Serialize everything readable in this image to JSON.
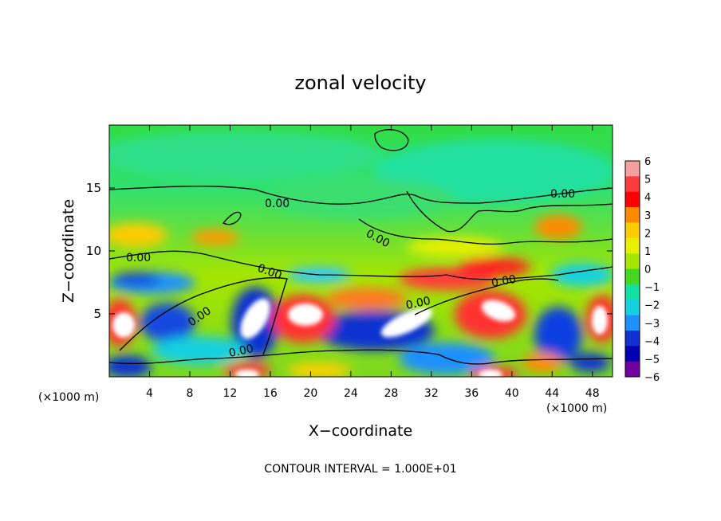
{
  "chart_data": {
    "type": "heatmap",
    "title": "zonal velocity",
    "xlabel": "X−coordinate",
    "ylabel": "Z−coordinate",
    "x_unit_left": "(×1000 m)",
    "x_unit_right": "(×1000 m)",
    "footer": "CONTOUR INTERVAL = 1.000E+01",
    "xlim": [
      0,
      50
    ],
    "ylim": [
      0,
      20
    ],
    "x_ticks": [
      "4",
      "8",
      "12",
      "16",
      "20",
      "24",
      "28",
      "32",
      "36",
      "40",
      "44",
      "48"
    ],
    "y_ticks": [
      "5",
      "10",
      "15"
    ],
    "colorbar": {
      "range": [
        -6,
        6
      ],
      "tick_labels": [
        "6",
        "5",
        "4",
        "3",
        "2",
        "1",
        "0",
        "−1",
        "−2",
        "−3",
        "−4",
        "−5",
        "−6"
      ],
      "colors": [
        "#f4a0a0",
        "#ff3a3a",
        "#ff0000",
        "#ff8a00",
        "#ffcc00",
        "#e8f000",
        "#a6e600",
        "#44d820",
        "#10e0a0",
        "#14d0e0",
        "#1e90ff",
        "#1030d0",
        "#0000b0",
        "#7000a0"
      ]
    },
    "contour_labels": [
      "0.00",
      "0.00",
      "0.00",
      "0.00",
      "0.00",
      "0.00",
      "0.00",
      "0.00",
      "0.00"
    ]
  }
}
